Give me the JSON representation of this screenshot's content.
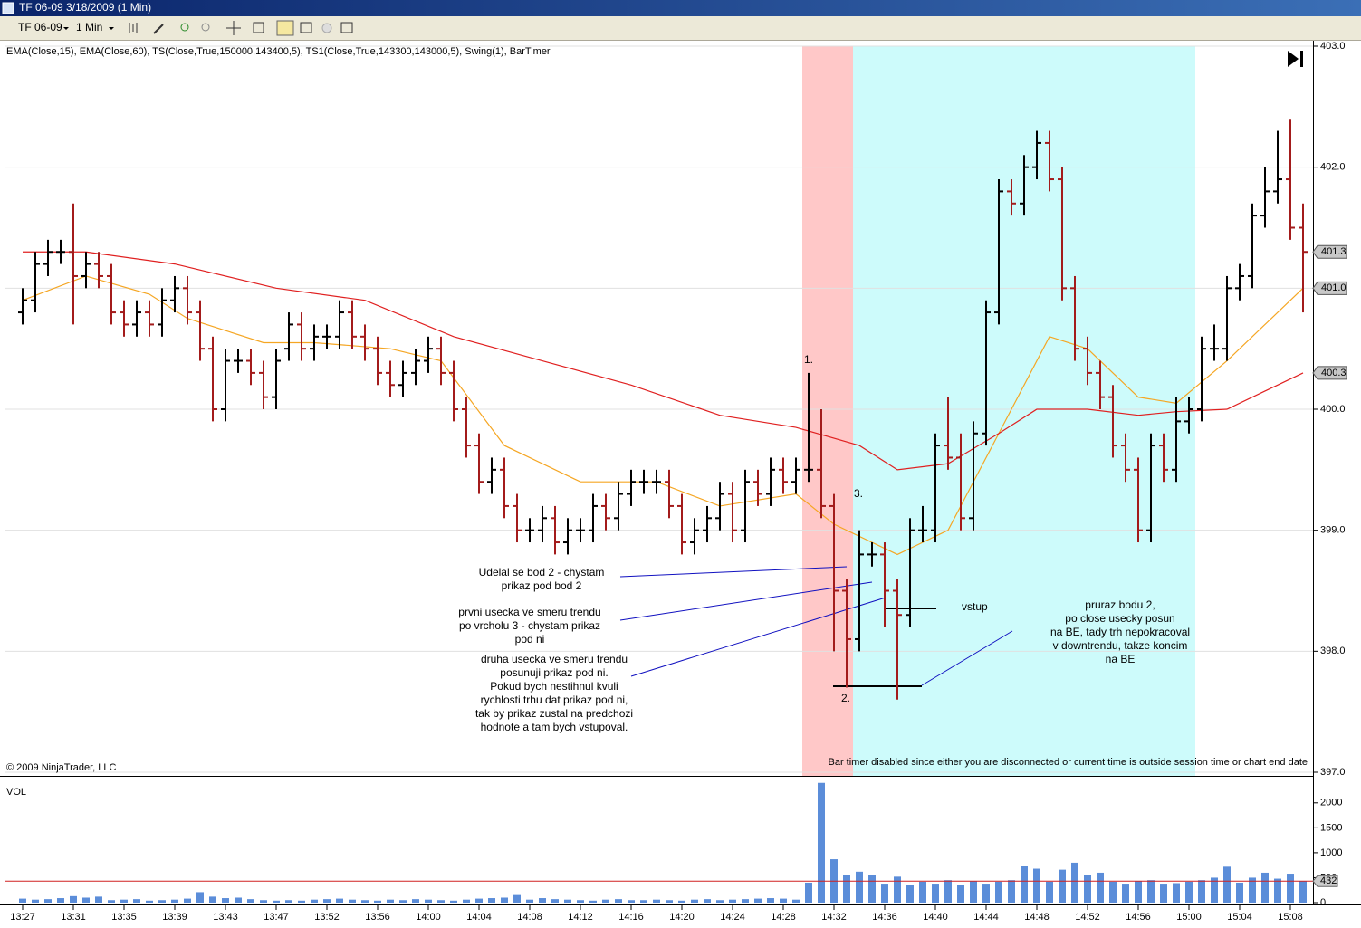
{
  "window": {
    "title": "TF 06-09  3/18/2009 (1 Min)"
  },
  "toolbar": {
    "instrument": "TF 06-09",
    "interval": "1 Min"
  },
  "chart_data": [
    {
      "type": "ohlc",
      "indicator_label": "EMA(Close,15), EMA(Close,60), TS(Close,True,150000,143400,5), TS1(Close,True,143300,143000,5), Swing(1), BarTimer",
      "copyright": "© 2009 NinjaTrader, LLC",
      "bar_timer_note": "Bar timer disabled since either you are disconnected or current time is outside session time or chart end date",
      "ylim": [
        397,
        403
      ],
      "yticks": [
        {
          "value": 397,
          "label": "397.0"
        },
        {
          "value": 398,
          "label": "398.0"
        },
        {
          "value": 399,
          "label": "399.0"
        },
        {
          "value": 400,
          "label": "400.0"
        },
        {
          "value": 401,
          "label": "401.0"
        },
        {
          "value": 402,
          "label": "402.0"
        },
        {
          "value": 403,
          "label": "403.0"
        }
      ],
      "grid": true,
      "up_color": "#000000",
      "down_color": "#a31b1b",
      "xticks": [
        {
          "value": 0,
          "label": "13:27"
        },
        {
          "value": 4,
          "label": "13:31"
        },
        {
          "value": 8,
          "label": "13:35"
        },
        {
          "value": 12,
          "label": "13:39"
        },
        {
          "value": 16,
          "label": "13:43"
        },
        {
          "value": 20,
          "label": "13:47"
        },
        {
          "value": 24,
          "label": "13:52"
        },
        {
          "value": 28,
          "label": "13:56"
        },
        {
          "value": 32,
          "label": "14:00"
        },
        {
          "value": 36,
          "label": "14:04"
        },
        {
          "value": 40,
          "label": "14:08"
        },
        {
          "value": 44,
          "label": "14:12"
        },
        {
          "value": 48,
          "label": "14:16"
        },
        {
          "value": 52,
          "label": "14:20"
        },
        {
          "value": 56,
          "label": "14:24"
        },
        {
          "value": 60,
          "label": "14:28"
        },
        {
          "value": 64,
          "label": "14:32"
        },
        {
          "value": 68,
          "label": "14:36"
        },
        {
          "value": 72,
          "label": "14:40"
        },
        {
          "value": 76,
          "label": "14:44"
        },
        {
          "value": 80,
          "label": "14:48"
        },
        {
          "value": 84,
          "label": "14:52"
        },
        {
          "value": 88,
          "label": "14:56"
        },
        {
          "value": 92,
          "label": "15:00"
        },
        {
          "value": 96,
          "label": "15:04"
        },
        {
          "value": 100,
          "label": "15:08"
        }
      ],
      "open": [
        400.8,
        400.9,
        401.2,
        401.3,
        401.3,
        401.1,
        401.2,
        401.1,
        400.8,
        400.7,
        400.8,
        400.7,
        400.9,
        401.0,
        400.8,
        400.5,
        400.0,
        400.4,
        400.4,
        400.3,
        400.1,
        400.5,
        400.7,
        400.5,
        400.6,
        400.6,
        400.8,
        400.6,
        400.5,
        400.3,
        400.2,
        400.3,
        400.4,
        400.5,
        400.3,
        400.0,
        399.7,
        399.4,
        399.5,
        399.2,
        399.0,
        399.0,
        399.1,
        398.9,
        399.0,
        399.0,
        399.2,
        399.1,
        399.3,
        399.4,
        399.4,
        399.4,
        399.2,
        398.9,
        399.0,
        399.1,
        399.3,
        399.0,
        399.4,
        399.3,
        399.5,
        399.4,
        399.5,
        399.5,
        399.2,
        398.5,
        398.1,
        398.8,
        398.8,
        398.5,
        398.3,
        399.0,
        399.0,
        399.7,
        399.6,
        399.1,
        399.8,
        400.8,
        401.8,
        401.7,
        402.0,
        402.2,
        401.9,
        401.0,
        400.5,
        400.3,
        400.1,
        399.7,
        399.5,
        399.0,
        399.7,
        399.5,
        399.9,
        400.0,
        400.5,
        400.5,
        401.0,
        401.1,
        401.6,
        401.8,
        401.9,
        401.5
      ],
      "high": [
        401.0,
        401.3,
        401.4,
        401.4,
        401.7,
        401.3,
        401.3,
        401.2,
        400.9,
        400.9,
        400.9,
        401.0,
        401.1,
        401.1,
        400.9,
        400.6,
        400.5,
        400.5,
        400.5,
        400.4,
        400.5,
        400.8,
        400.8,
        400.7,
        400.7,
        400.9,
        400.9,
        400.7,
        400.6,
        400.4,
        400.4,
        400.5,
        400.6,
        400.6,
        400.4,
        400.1,
        399.8,
        399.6,
        399.6,
        399.3,
        399.1,
        399.2,
        399.2,
        399.1,
        399.1,
        399.3,
        399.3,
        399.4,
        399.5,
        399.5,
        399.5,
        399.5,
        399.3,
        399.1,
        399.2,
        399.4,
        399.4,
        399.5,
        399.5,
        399.6,
        399.6,
        399.6,
        400.3,
        400.0,
        399.3,
        398.6,
        399.0,
        398.9,
        398.9,
        398.6,
        399.1,
        399.2,
        399.8,
        400.1,
        399.8,
        399.9,
        400.9,
        401.9,
        401.9,
        402.1,
        402.3,
        402.3,
        402.0,
        401.1,
        400.6,
        400.4,
        400.2,
        399.8,
        399.6,
        399.8,
        399.8,
        400.1,
        400.1,
        400.6,
        400.7,
        401.1,
        401.2,
        401.7,
        402.0,
        402.3,
        402.4,
        401.7
      ],
      "low": [
        400.7,
        400.8,
        401.1,
        401.2,
        400.7,
        401.0,
        401.0,
        400.7,
        400.6,
        400.6,
        400.6,
        400.6,
        400.8,
        400.7,
        400.4,
        399.9,
        399.9,
        400.3,
        400.2,
        400.0,
        400.0,
        400.4,
        400.4,
        400.4,
        400.5,
        400.5,
        400.5,
        400.4,
        400.2,
        400.1,
        400.1,
        400.2,
        400.3,
        400.2,
        399.9,
        399.6,
        399.3,
        399.3,
        399.1,
        398.9,
        398.9,
        398.9,
        398.8,
        398.8,
        398.9,
        398.9,
        399.0,
        399.0,
        399.2,
        399.3,
        399.3,
        399.1,
        398.8,
        398.8,
        398.9,
        399.0,
        398.9,
        398.9,
        399.2,
        399.2,
        399.3,
        399.3,
        399.4,
        399.1,
        398.0,
        397.7,
        398.0,
        398.7,
        398.2,
        397.6,
        398.2,
        398.9,
        398.9,
        399.5,
        399.0,
        399.0,
        399.7,
        400.7,
        401.6,
        401.6,
        401.9,
        401.8,
        400.9,
        400.4,
        400.2,
        400.0,
        399.6,
        399.4,
        398.9,
        398.9,
        399.4,
        399.4,
        399.8,
        399.9,
        400.4,
        400.4,
        400.9,
        401.0,
        401.5,
        401.7,
        401.4,
        400.8
      ],
      "close": [
        400.9,
        401.2,
        401.3,
        401.3,
        401.1,
        401.2,
        401.1,
        400.8,
        400.7,
        400.8,
        400.7,
        400.9,
        401.0,
        400.8,
        400.5,
        400.0,
        400.4,
        400.4,
        400.3,
        400.1,
        400.4,
        400.7,
        400.5,
        400.6,
        400.6,
        400.8,
        400.6,
        400.5,
        400.3,
        400.2,
        400.3,
        400.4,
        400.5,
        400.3,
        400.0,
        399.7,
        399.4,
        399.5,
        399.2,
        399.0,
        399.0,
        399.1,
        398.9,
        399.0,
        399.0,
        399.2,
        399.1,
        399.3,
        399.4,
        399.4,
        399.4,
        399.2,
        398.9,
        399.0,
        399.1,
        399.3,
        399.0,
        399.4,
        399.3,
        399.5,
        399.4,
        399.5,
        399.5,
        399.2,
        398.5,
        398.1,
        398.8,
        398.8,
        398.5,
        398.3,
        399.0,
        399.0,
        399.7,
        399.6,
        399.1,
        399.8,
        400.8,
        401.8,
        401.7,
        402.0,
        402.2,
        401.9,
        401.0,
        400.5,
        400.3,
        400.1,
        399.7,
        399.5,
        399.0,
        399.7,
        399.5,
        399.9,
        400.0,
        400.5,
        400.5,
        401.0,
        401.1,
        401.6,
        401.8,
        401.9,
        401.5,
        401.3
      ],
      "lines": [
        {
          "color": "#f5a623",
          "x": [
            0,
            5,
            10,
            13,
            19,
            23,
            29,
            33,
            38,
            44,
            50,
            55,
            61,
            64,
            69,
            73,
            77,
            81,
            84,
            88,
            91,
            95,
            101
          ],
          "values": [
            400.9,
            401.1,
            400.95,
            400.75,
            400.55,
            400.55,
            400.5,
            400.4,
            399.7,
            399.4,
            399.4,
            399.2,
            399.3,
            399.05,
            398.8,
            399.0,
            399.8,
            400.6,
            400.5,
            400.1,
            400.05,
            400.4,
            401.0
          ]
        },
        {
          "color": "#e02020",
          "x": [
            0,
            5,
            12,
            20,
            27,
            34,
            41,
            48,
            55,
            61,
            66,
            69,
            73,
            77,
            80,
            84,
            88,
            91,
            95,
            101
          ],
          "values": [
            401.3,
            401.3,
            401.2,
            401.0,
            400.9,
            400.6,
            400.4,
            400.2,
            399.95,
            399.85,
            399.7,
            399.5,
            399.55,
            399.8,
            400.0,
            400.0,
            399.95,
            399.98,
            400.0,
            400.3
          ]
        }
      ],
      "price_markers": [
        401.3,
        {
          "value": 401,
          "label": "401.0"
        },
        400.3
      ],
      "annotations": [
        {
          "lines": [
            "1."
          ]
        },
        {
          "lines": [
            "2."
          ]
        },
        {
          "lines": [
            "3."
          ]
        },
        {
          "lines": [
            "vstup"
          ]
        },
        {
          "lines": [
            "Udelal se bod 2 - chystam",
            "prikaz pod bod 2"
          ]
        },
        {
          "lines": [
            "prvni usecka ve smeru trendu",
            "po vrcholu 3 - chystam prikaz",
            "pod ni"
          ]
        },
        {
          "lines": [
            "druha usecka ve smeru trendu",
            "posunuji prikaz pod ni.",
            "Pokud bych nestihnul kvuli",
            "rychlosti trhu dat prikaz pod ni,",
            "tak by prikaz zustal na predchozi",
            "hodnote a tam bych vstupoval."
          ]
        },
        {
          "lines": [
            "pruraz bodu 2,",
            "po close usecky posun",
            "na BE, tady trh nepokracoval",
            "v downtrendu, takze koncim",
            "na BE"
          ]
        }
      ]
    },
    {
      "type": "bar",
      "label": "VOL",
      "color": "#5b8dd9",
      "ylim": [
        0,
        2450
      ],
      "yticks": [
        0,
        500,
        1000,
        1500,
        2000
      ],
      "marker": 432,
      "marker_color": "#d02020",
      "values": [
        80,
        60,
        70,
        90,
        130,
        100,
        120,
        50,
        60,
        70,
        40,
        50,
        60,
        80,
        210,
        120,
        90,
        100,
        70,
        50,
        40,
        50,
        40,
        60,
        70,
        80,
        60,
        50,
        40,
        60,
        50,
        70,
        60,
        50,
        40,
        60,
        80,
        90,
        100,
        170,
        60,
        90,
        70,
        60,
        50,
        40,
        60,
        70,
        50,
        50,
        60,
        50,
        40,
        60,
        70,
        50,
        60,
        70,
        80,
        90,
        80,
        60,
        400,
        2400,
        870,
        560,
        620,
        550,
        380,
        520,
        350,
        420,
        380,
        450,
        350,
        430,
        380,
        420,
        450,
        730,
        680,
        420,
        660,
        800,
        550,
        600,
        420,
        380,
        430,
        450,
        380,
        390,
        420,
        450,
        500,
        720,
        400,
        500,
        600,
        480,
        580,
        432
      ]
    }
  ]
}
